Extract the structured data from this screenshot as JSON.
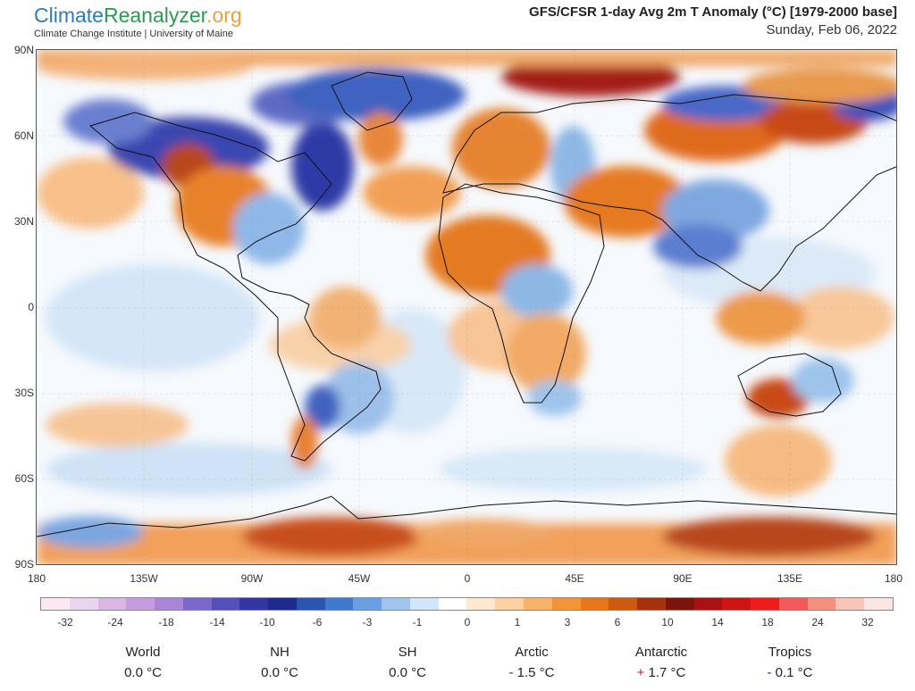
{
  "header": {
    "logo_part1": "Climate",
    "logo_part2": "Reanalyzer",
    "logo_part3": ".org",
    "affiliation": "Climate Change Institute | University of Maine",
    "title": "GFS/CFSR 1-day Avg 2m T Anomaly (°C) [1979-2000 base]",
    "date": "Sunday, Feb 06, 2022"
  },
  "map": {
    "lat_labels": [
      "90N",
      "60N",
      "30N",
      "0",
      "30S",
      "60S",
      "90S"
    ],
    "lon_labels": [
      "180",
      "135W",
      "90W",
      "45W",
      "0",
      "45E",
      "90E",
      "135E",
      "180"
    ]
  },
  "legend": {
    "colors": [
      "#fbe8f2",
      "#ead5ee",
      "#d9b8e6",
      "#c59ce0",
      "#a985d6",
      "#7b68c8",
      "#5550b8",
      "#3336a2",
      "#1f2b8c",
      "#2c55b0",
      "#3f79cc",
      "#6aa0e0",
      "#a0c6f0",
      "#d2e6fa",
      "#ffffff",
      "#fde8d2",
      "#fcd0a2",
      "#f8b36a",
      "#f2943a",
      "#e8761a",
      "#cc5a12",
      "#a5320e",
      "#7d140c",
      "#a81212",
      "#cc1414",
      "#ee1c1c",
      "#f25a5a",
      "#f49080",
      "#f7c6b8",
      "#fbe6e6"
    ],
    "labels": [
      "-32",
      "-24",
      "-18",
      "-14",
      "-10",
      "-6",
      "-3",
      "-1",
      "0",
      "1",
      "3",
      "6",
      "10",
      "14",
      "18",
      "24",
      "32"
    ]
  },
  "stats": [
    {
      "name": "World",
      "sign": "",
      "value": "0.0 °C"
    },
    {
      "name": "NH",
      "sign": "",
      "value": "0.0 °C"
    },
    {
      "name": "SH",
      "sign": "",
      "value": "0.0 °C"
    },
    {
      "name": "Arctic",
      "sign": "-",
      "value": "1.5 °C"
    },
    {
      "name": "Antarctic",
      "sign": "+",
      "value": "1.7 °C"
    },
    {
      "name": "Tropics",
      "sign": "-",
      "value": "0.1 °C"
    }
  ]
}
